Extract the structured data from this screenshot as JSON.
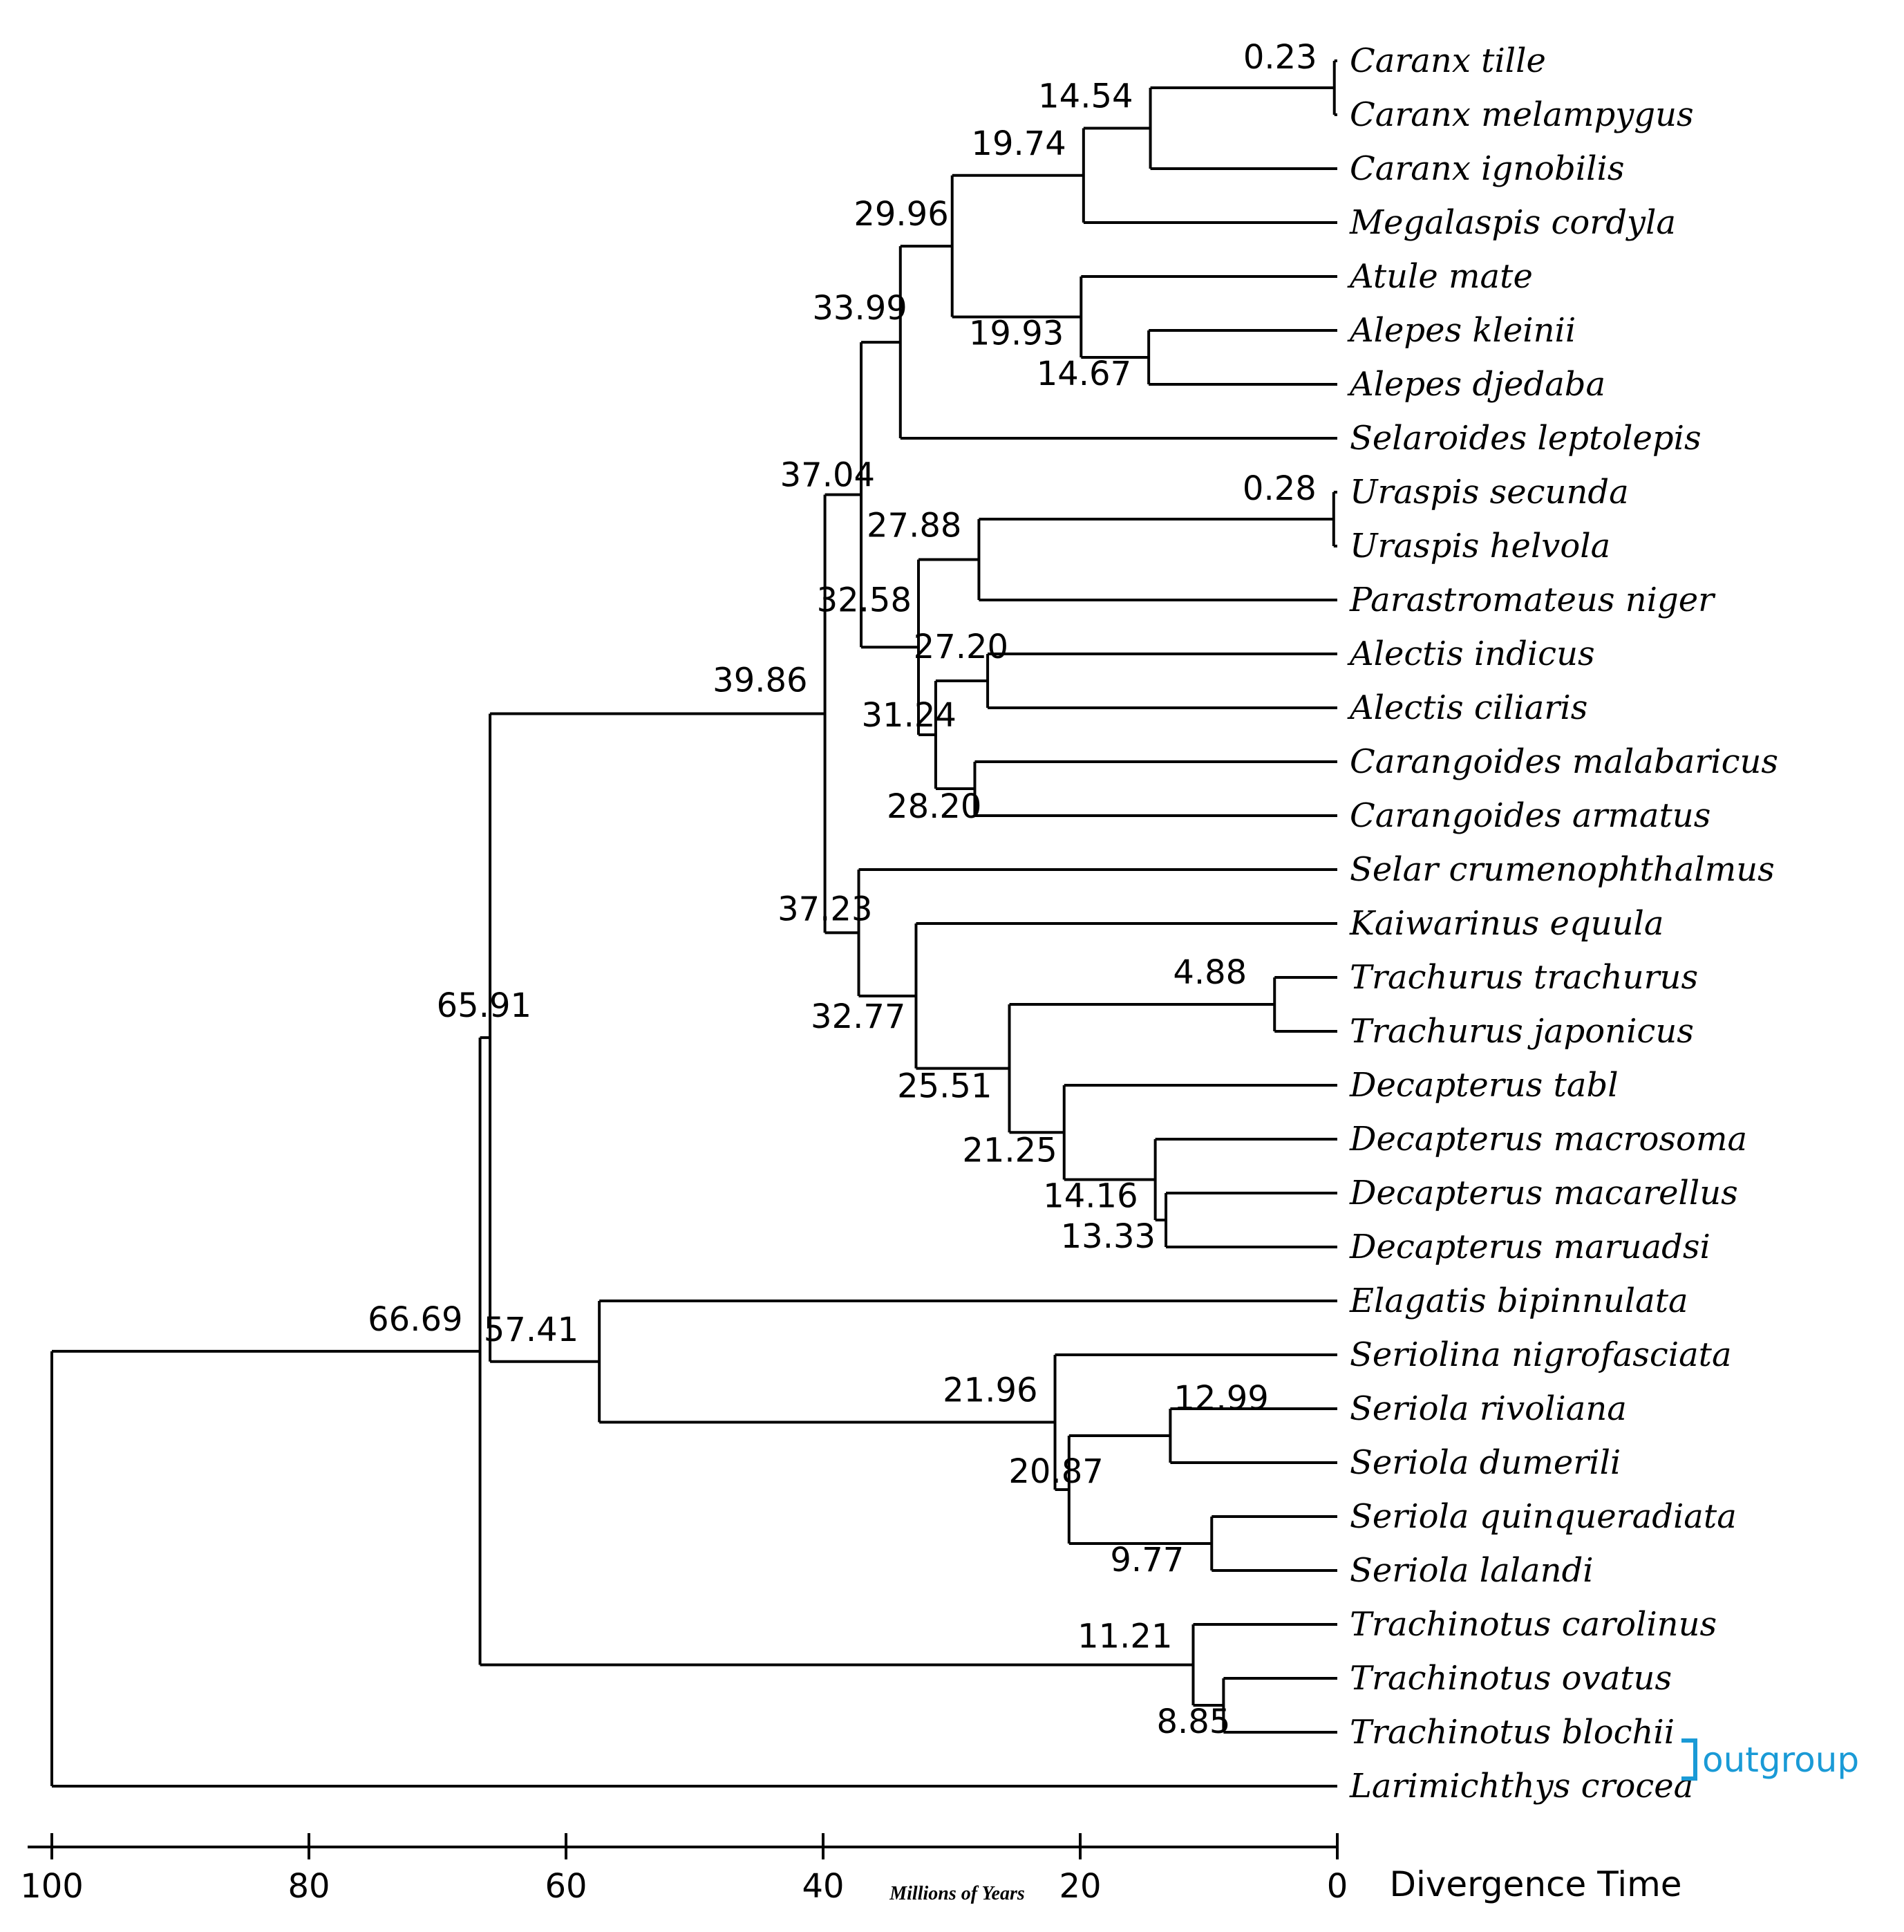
{
  "colors": {
    "default": "#000000",
    "highlight": "#e8112d",
    "outgroup": "#1a9ad6"
  },
  "axis": {
    "ticks": [
      "100",
      "80",
      "60",
      "40",
      "20",
      "0"
    ],
    "unit_label": "Millions of Years",
    "title": "Divergence Time",
    "range": [
      100,
      0
    ]
  },
  "outgroup_label": "outgroup",
  "taxa": [
    {
      "name": "Caranx tille",
      "status": "default"
    },
    {
      "name": "Caranx melampygus",
      "status": "default"
    },
    {
      "name": "Caranx ignobilis",
      "status": "default"
    },
    {
      "name": "Megalaspis cordyla",
      "status": "default"
    },
    {
      "name": "Atule mate",
      "status": "default"
    },
    {
      "name": "Alepes kleinii",
      "status": "default"
    },
    {
      "name": "Alepes djedaba",
      "status": "highlight"
    },
    {
      "name": "Selaroides leptolepis",
      "status": "default"
    },
    {
      "name": "Uraspis secunda",
      "status": "default"
    },
    {
      "name": "Uraspis helvola",
      "status": "default"
    },
    {
      "name": "Parastromateus niger",
      "status": "default"
    },
    {
      "name": "Alectis indicus",
      "status": "highlight"
    },
    {
      "name": "Alectis ciliaris",
      "status": "default"
    },
    {
      "name": "Carangoides malabaricus",
      "status": "default"
    },
    {
      "name": "Carangoides armatus",
      "status": "default"
    },
    {
      "name": "Selar crumenophthalmus",
      "status": "default"
    },
    {
      "name": "Kaiwarinus equula",
      "status": "default"
    },
    {
      "name": "Trachurus trachurus",
      "status": "default"
    },
    {
      "name": "Trachurus japonicus",
      "status": "default"
    },
    {
      "name": "Decapterus tabl",
      "status": "highlight"
    },
    {
      "name": "Decapterus macrosoma",
      "status": "default"
    },
    {
      "name": "Decapterus macarellus",
      "status": "default"
    },
    {
      "name": "Decapterus maruadsi",
      "status": "default"
    },
    {
      "name": "Elagatis bipinnulata",
      "status": "default"
    },
    {
      "name": "Seriolina nigrofasciata",
      "status": "default"
    },
    {
      "name": "Seriola rivoliana",
      "status": "default"
    },
    {
      "name": "Seriola dumerili",
      "status": "default"
    },
    {
      "name": "Seriola quinqueradiata",
      "status": "default"
    },
    {
      "name": "Seriola lalandi",
      "status": "default"
    },
    {
      "name": "Trachinotus carolinus",
      "status": "default"
    },
    {
      "name": "Trachinotus ovatus",
      "status": "default"
    },
    {
      "name": "Trachinotus blochii",
      "status": "default"
    },
    {
      "name": "Larimichthys crocea",
      "status": "outgroup"
    }
  ],
  "node_ages": {
    "n1": "0.23",
    "n2": "14.54",
    "n3": "19.74",
    "n4": "14.67",
    "n5": "19.93",
    "n6": "29.96",
    "n7": "33.99",
    "n8": "0.28",
    "n9": "27.88",
    "n10": "27.20",
    "n11": "28.20",
    "n12": "31.24",
    "n13": "32.58",
    "n14": "37.04",
    "n15": "4.88",
    "n16": "13.33",
    "n17": "14.16",
    "n18": "21.25",
    "n19": "25.51",
    "n20": "32.77",
    "n21": "37.23",
    "n22": "39.86",
    "n23": "12.99",
    "n24": "9.77",
    "n25": "20.87",
    "n26": "21.96",
    "n27": "57.41",
    "n28": "8.85",
    "n29": "11.21",
    "n30": "65.91",
    "n31": "66.69"
  }
}
